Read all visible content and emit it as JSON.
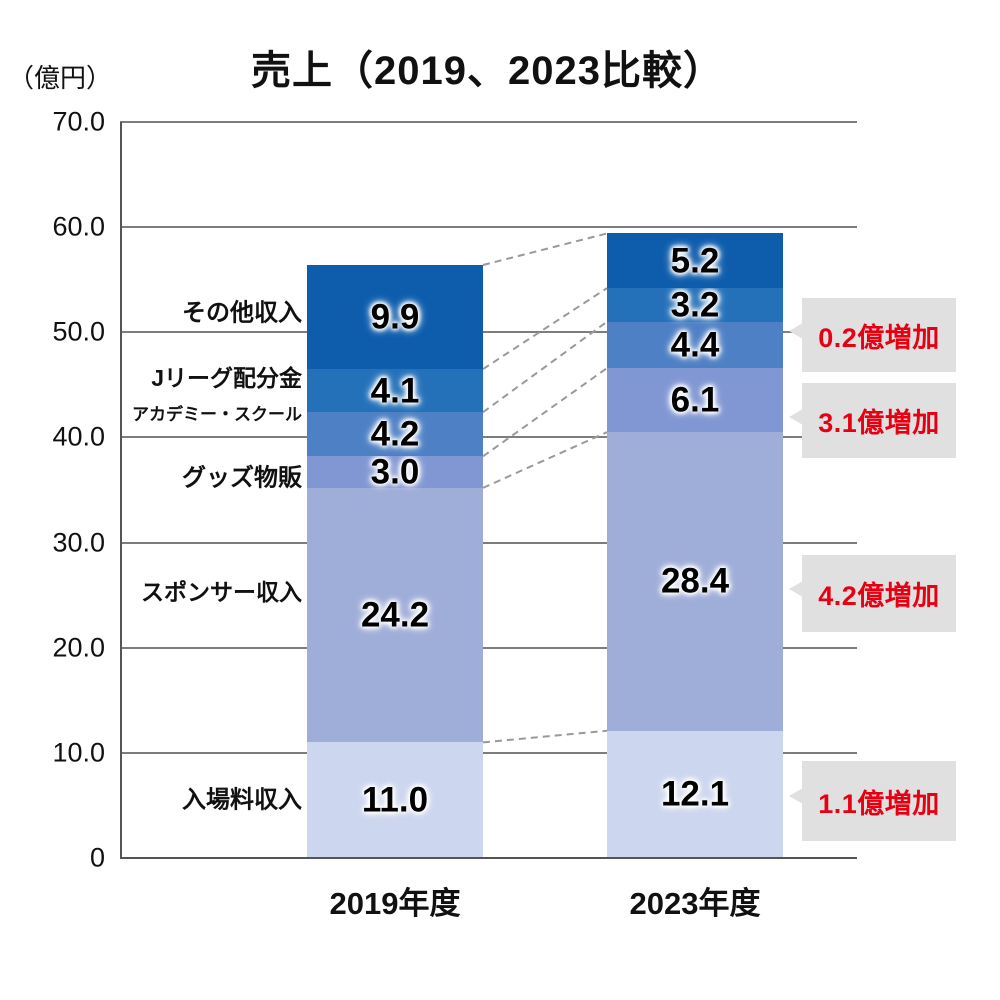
{
  "title": "売上（2019、2023比較）",
  "unit_label": "（億円）",
  "colors": {
    "annotation_text": "#e60012",
    "annotation_box_bg": "#e0e0e0",
    "connector_line": "#999999"
  },
  "chart_data": {
    "type": "bar",
    "stacked": true,
    "title": "売上（2019、2023比較）",
    "ylabel": "（億円）",
    "ylim": [
      0,
      70
    ],
    "grid": true,
    "yticks": [
      70,
      60,
      50,
      40,
      30,
      20,
      10,
      0
    ],
    "ytick_labels": [
      "70.0",
      "60.0",
      "50.0",
      "40.0",
      "30.0",
      "20.0",
      "10.0",
      "0"
    ],
    "categories": [
      "2019年度",
      "2023年度"
    ],
    "segments_bottom_to_top": [
      {
        "label": "入場料収入",
        "values": [
          11.0,
          12.1
        ],
        "color": "#cdd6ef"
      },
      {
        "label": "スポンサー収入",
        "values": [
          24.2,
          28.4
        ],
        "color": "#9fadd9"
      },
      {
        "label": "グッズ物販",
        "values": [
          3.0,
          6.1
        ],
        "color": "#8197d3"
      },
      {
        "label": "アカデミー・スクール",
        "values": [
          4.2,
          4.4
        ],
        "color": "#4e80c5"
      },
      {
        "label": "Jリーグ配分金",
        "values": [
          4.1,
          3.2
        ],
        "color": "#2471ba"
      },
      {
        "label": "その他収入",
        "values": [
          9.9,
          5.2
        ],
        "color": "#0e5dad"
      }
    ],
    "totals": [
      56.4,
      59.4
    ],
    "annotations": [
      {
        "text": "0.2億増加",
        "segment": "アカデミー・スクール"
      },
      {
        "text": "3.1億増加",
        "segment": "グッズ物販"
      },
      {
        "text": "4.2億増加",
        "segment": "スポンサー収入"
      },
      {
        "text": "1.1億増加",
        "segment": "入場料収入"
      }
    ]
  }
}
